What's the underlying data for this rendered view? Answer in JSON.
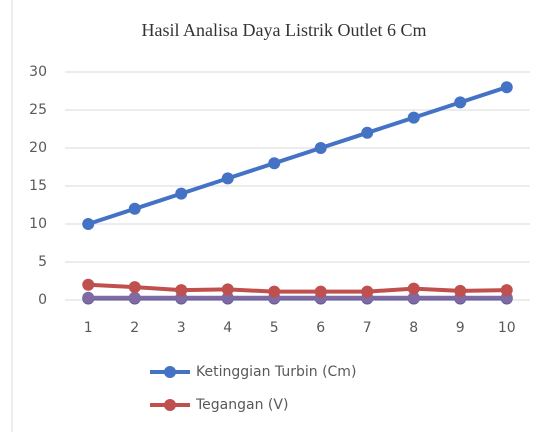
{
  "chart_data": {
    "type": "line",
    "title": "Hasil Analisa Daya Listrik Outlet 6 Cm",
    "categories": [
      "1",
      "2",
      "3",
      "4",
      "5",
      "6",
      "7",
      "8",
      "9",
      "10"
    ],
    "series": [
      {
        "name": "Ketinggian Turbin (Cm)",
        "color": "#4472c4",
        "values": [
          10,
          12,
          14,
          16,
          18,
          20,
          22,
          24,
          26,
          28
        ]
      },
      {
        "name": "Tegangan (V)",
        "color": "#c0504d",
        "values": [
          2.0,
          1.7,
          1.3,
          1.4,
          1.1,
          1.1,
          1.1,
          1.5,
          1.2,
          1.3
        ]
      },
      {
        "color": "#7f6aa3",
        "values": [
          0.3,
          0.3,
          0.3,
          0.3,
          0.3,
          0.3,
          0.3,
          0.3,
          0.3,
          0.3
        ]
      },
      {
        "color": "#4b4b8c",
        "values": [
          0.2,
          0.2,
          0.2,
          0.2,
          0.2,
          0.2,
          0.2,
          0.2,
          0.2,
          0.2
        ]
      }
    ],
    "ylim": [
      0,
      30
    ],
    "yticks": [
      0,
      5,
      10,
      15,
      20,
      25,
      30
    ],
    "grid": true
  }
}
